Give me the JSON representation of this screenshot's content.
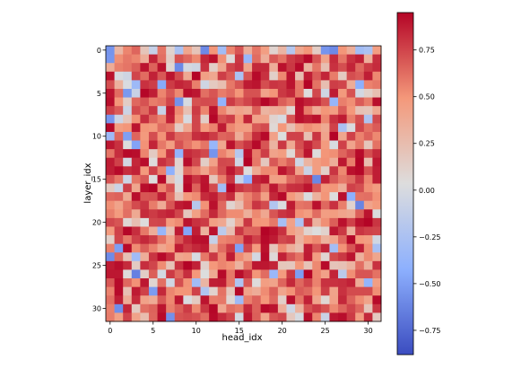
{
  "chart_data": {
    "type": "heatmap",
    "title": "",
    "xlabel": "head_idx",
    "ylabel": "layer_idx",
    "colormap": "coolwarm",
    "vmin": -0.88,
    "vmax": 0.95,
    "n_rows": 32,
    "n_cols": 32,
    "x_ticks": [
      0,
      5,
      10,
      15,
      20,
      25,
      30
    ],
    "y_ticks": [
      0,
      5,
      10,
      15,
      20,
      25,
      30
    ],
    "colorbar_ticks": [
      0.75,
      0.5,
      0.25,
      0.0,
      -0.25,
      -0.5,
      -0.75
    ],
    "colorbar_tick_labels": [
      "0.75",
      "0.50",
      "0.25",
      "0.00",
      "−0.25",
      "−0.50",
      "−0.75"
    ],
    "row0_values": [
      -0.55,
      0.3,
      0.55,
      0.65,
      0.2,
      -0.1,
      0.6,
      0.1,
      -0.25,
      0.4,
      0.2,
      -0.6,
      0.5,
      -0.3,
      0.55,
      0.7,
      0.35,
      0.6,
      0.45,
      0.1,
      0.3,
      -0.2,
      0.4,
      0.5,
      0.15,
      -0.55,
      -0.6,
      0.5,
      0.35,
      -0.3,
      -0.25,
      0.45
    ],
    "value_range_note": "",
    "values": []
  }
}
